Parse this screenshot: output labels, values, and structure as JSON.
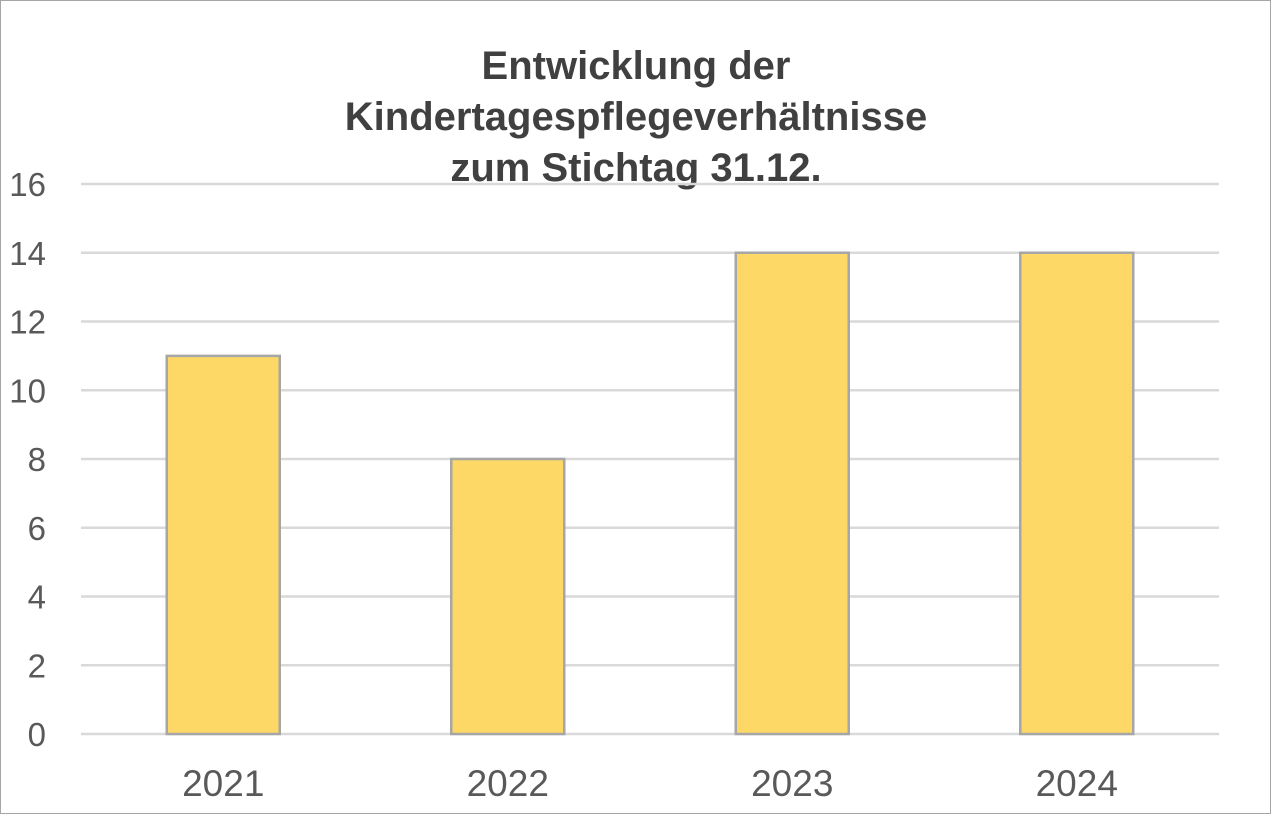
{
  "chart_data": {
    "type": "bar",
    "title_lines": [
      "Entwicklung der",
      "Kindertagespflegeverhältnisse",
      "zum Stichtag 31.12."
    ],
    "categories": [
      "2021",
      "2022",
      "2023",
      "2024"
    ],
    "values": [
      11,
      8,
      14,
      14
    ],
    "xlabel": "",
    "ylabel": "",
    "ylim": [
      0,
      16
    ],
    "yticks": [
      "0",
      "2",
      "4",
      "6",
      "8",
      "10",
      "12",
      "14",
      "16"
    ],
    "grid": true,
    "legend": "none",
    "colors": {
      "bar_fill": "#FDD866",
      "bar_stroke": "#A6A6A6",
      "grid": "#D9D9D9",
      "text": "#595959",
      "title": "#404040"
    }
  }
}
